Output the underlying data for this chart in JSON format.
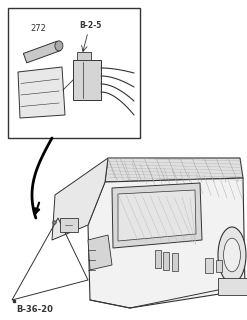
{
  "bg_color": "#ffffff",
  "lc": "#333333",
  "lc_light": "#666666",
  "label_272": "272",
  "label_b25": "B-2-5",
  "label_b3620": "B-36-20",
  "fig_width": 2.47,
  "fig_height": 3.2,
  "dpi": 100
}
